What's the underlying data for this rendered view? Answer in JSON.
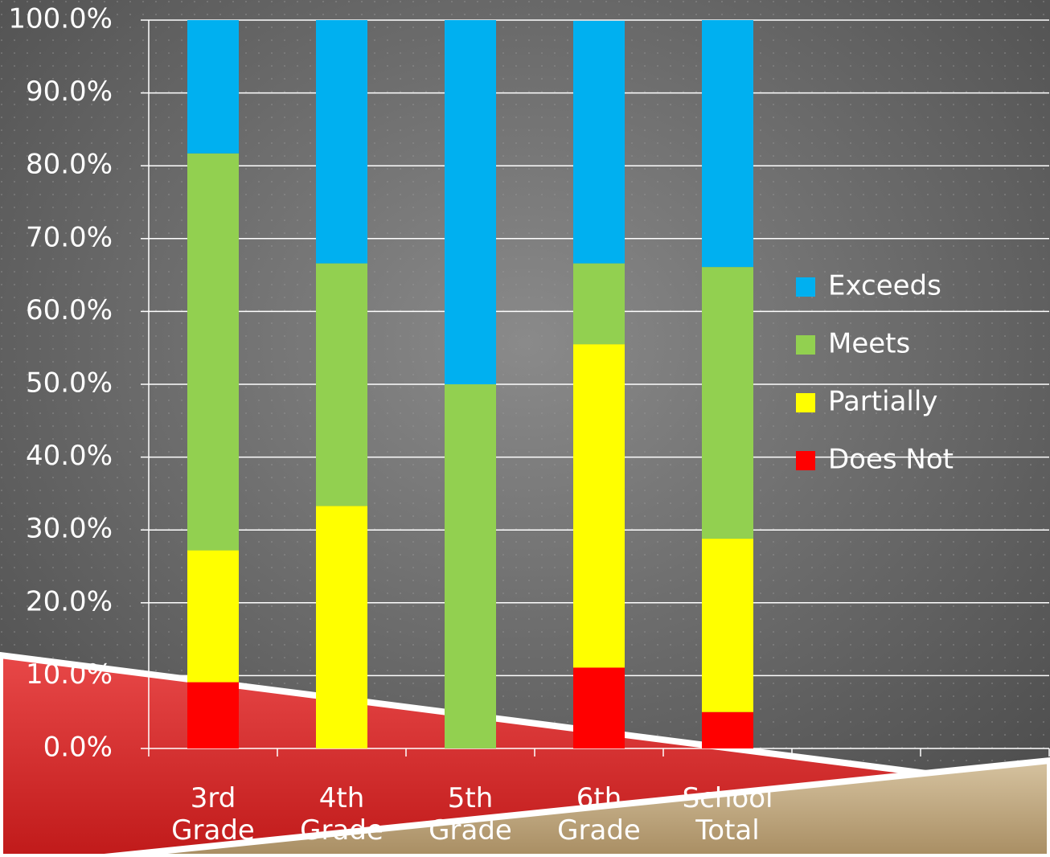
{
  "chart_data": {
    "type": "stacked_bar",
    "categories": [
      "3rd Grade",
      "4th Grade",
      "5th Grade",
      "6th Grade",
      "School Total",
      null,
      null
    ],
    "series": [
      {
        "name": "Does Not",
        "color": "#ff0000",
        "values": [
          9.1,
          0,
          0,
          11.1,
          5.0,
          null,
          null
        ]
      },
      {
        "name": "Partially",
        "color": "#ffff00",
        "values": [
          18.1,
          33.3,
          0,
          44.4,
          23.8,
          null,
          null
        ]
      },
      {
        "name": "Meets",
        "color": "#92d050",
        "values": [
          54.5,
          33.3,
          50.0,
          11.1,
          37.3,
          null,
          null
        ]
      },
      {
        "name": "Exceeds",
        "color": "#00b0f0",
        "values": [
          18.3,
          33.4,
          50.0,
          33.3,
          33.9,
          null,
          null
        ]
      }
    ],
    "ylim": [
      0,
      100
    ],
    "yticks": [
      {
        "value": 0,
        "label": "0.0%"
      },
      {
        "value": 10,
        "label": "10.0%"
      },
      {
        "value": 20,
        "label": "20.0%"
      },
      {
        "value": 30,
        "label": "30.0%"
      },
      {
        "value": 40,
        "label": "40.0%"
      },
      {
        "value": 50,
        "label": "50.0%"
      },
      {
        "value": 60,
        "label": "60.0%"
      },
      {
        "value": 70,
        "label": "70.0%"
      },
      {
        "value": 80,
        "label": "80.0%"
      },
      {
        "value": 90,
        "label": "90.0%"
      },
      {
        "value": 100,
        "label": "100.0%"
      }
    ],
    "grid": true,
    "legend": "right"
  }
}
